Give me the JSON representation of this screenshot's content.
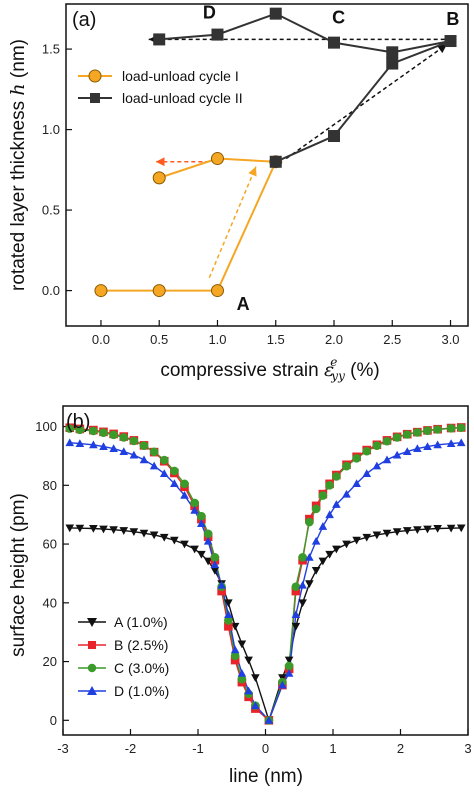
{
  "chart_data": [
    {
      "type": "line",
      "panel_label": "(a)",
      "xlabel": "compressive strain ",
      "xlabel_symbol": "ε",
      "xlabel_sub": "yy",
      "xlabel_sup": "e",
      "xlabel_unit": " (%)",
      "ylabel": "rotated layer thickness ",
      "ylabel_symbol": "h",
      "ylabel_unit": " (nm)",
      "xlim": [
        -0.3,
        3.15
      ],
      "ylim": [
        -0.22,
        1.78
      ],
      "xticks": [
        0.0,
        0.5,
        1.0,
        1.5,
        2.0,
        2.5,
        3.0
      ],
      "xtick_labels": [
        "0.0",
        "0.5",
        "1.0",
        "1.5",
        "2.0",
        "2.5",
        "3.0"
      ],
      "yticks": [
        0.0,
        0.5,
        1.0,
        1.5
      ],
      "ytick_labels": [
        "0.0",
        "0.5",
        "1.0",
        "1.5"
      ],
      "legend_position": "upper-left",
      "series": [
        {
          "name": "load-unload cycle I",
          "color": "#f5a623",
          "marker": "circle",
          "x": [
            0.0,
            0.5,
            1.0,
            1.5,
            1.0,
            0.5
          ],
          "y": [
            0.0,
            0.0,
            0.0,
            0.8,
            0.82,
            0.7
          ]
        },
        {
          "name": "load-unload cycle II",
          "color": "#333333",
          "marker": "square",
          "x": [
            1.5,
            2.0,
            2.5,
            3.0,
            2.5,
            2.0,
            1.5,
            1.0,
            0.5
          ],
          "y": [
            0.8,
            0.96,
            1.41,
            1.55,
            1.48,
            1.54,
            1.72,
            1.59,
            1.56
          ]
        }
      ],
      "point_labels": [
        {
          "text": "A",
          "x": 1.22,
          "y": -0.12
        },
        {
          "text": "B",
          "x": 3.02,
          "y": 1.65
        },
        {
          "text": "C",
          "x": 2.04,
          "y": 1.66
        },
        {
          "text": "D",
          "x": 0.93,
          "y": 1.69
        }
      ],
      "arrows": [
        {
          "color": "#f5a623",
          "from": [
            0.93,
            0.08
          ],
          "to": [
            1.33,
            0.77
          ]
        },
        {
          "color": "#ff5a1f",
          "from": [
            0.99,
            0.8
          ],
          "to": [
            0.47,
            0.8
          ]
        },
        {
          "color": "#111111",
          "from": [
            1.59,
            0.82
          ],
          "to": [
            2.97,
            1.53
          ]
        },
        {
          "color": "#111111",
          "from": [
            2.95,
            1.56
          ],
          "to": [
            0.41,
            1.56
          ]
        }
      ]
    },
    {
      "type": "line",
      "panel_label": "(b)",
      "xlabel": "line  (nm)",
      "ylabel": "surface height  (pm)",
      "xlim": [
        -3,
        3
      ],
      "ylim": [
        -5,
        107
      ],
      "xticks": [
        -3,
        -2,
        -1,
        0,
        1,
        2,
        3
      ],
      "xtick_labels": [
        "-3",
        "-2",
        "-1",
        "0",
        "1",
        "2",
        "3"
      ],
      "yticks": [
        0,
        20,
        40,
        60,
        80,
        100
      ],
      "ytick_labels": [
        "0",
        "20",
        "40",
        "60",
        "80",
        "100"
      ],
      "legend_position": "lower-left",
      "profile_x": [
        -2.9,
        -2.75,
        -2.55,
        -2.4,
        -2.25,
        -2.1,
        -1.95,
        -1.8,
        -1.65,
        -1.5,
        -1.35,
        -1.2,
        -1.05,
        -0.95,
        -0.85,
        -0.75,
        -0.65,
        -0.55,
        -0.45,
        -0.35,
        -0.25,
        -0.15,
        0.05,
        0.25,
        0.35,
        0.45,
        0.55,
        0.65,
        0.75,
        0.85,
        0.95,
        1.05,
        1.2,
        1.35,
        1.5,
        1.65,
        1.8,
        1.95,
        2.1,
        2.25,
        2.4,
        2.55,
        2.75,
        2.9
      ],
      "series": [
        {
          "name": "A (1.0%)",
          "color": "#111111",
          "marker": "triangle-down",
          "y": [
            65.5,
            65.4,
            65.3,
            65.1,
            64.9,
            64.6,
            64.2,
            63.7,
            63.1,
            62.3,
            61.3,
            60.0,
            58.3,
            56.5,
            54.2,
            51.0,
            46.5,
            40.0,
            32.0,
            26.0,
            20.5,
            14.5,
            0.0,
            14.5,
            20.5,
            32.0,
            40.0,
            46.5,
            51.0,
            54.2,
            56.5,
            58.3,
            60.0,
            61.3,
            62.3,
            63.1,
            63.7,
            64.2,
            64.6,
            64.9,
            65.1,
            65.3,
            65.4,
            65.5
          ]
        },
        {
          "name": "B (2.5%)",
          "color": "#e8242a",
          "marker": "square",
          "y": [
            99.6,
            99.2,
            98.8,
            98.2,
            97.5,
            96.6,
            95.3,
            93.6,
            91.3,
            88.2,
            84.2,
            79.5,
            73.0,
            68.5,
            62.5,
            54.5,
            44.0,
            32.0,
            20.5,
            13.0,
            8.0,
            4.0,
            0.0,
            12.0,
            17.5,
            44.0,
            54.5,
            68.5,
            73.0,
            77.0,
            80.5,
            83.5,
            87.0,
            89.7,
            92.0,
            93.8,
            95.3,
            96.5,
            97.4,
            98.1,
            98.7,
            99.1,
            99.5,
            99.7
          ]
        },
        {
          "name": "C (3.0%)",
          "color": "#3a9a2a",
          "marker": "circle",
          "y": [
            99.3,
            98.9,
            98.5,
            97.9,
            97.2,
            96.3,
            95.1,
            93.5,
            91.4,
            88.6,
            84.9,
            80.5,
            74.0,
            69.5,
            63.5,
            55.5,
            45.5,
            34.0,
            22.0,
            14.0,
            9.0,
            5.0,
            0.0,
            13.0,
            18.5,
            45.5,
            55.5,
            67.5,
            72.0,
            76.5,
            80.0,
            83.0,
            86.5,
            89.2,
            91.6,
            93.5,
            95.0,
            96.3,
            97.3,
            98.0,
            98.6,
            99.0,
            99.4,
            99.6
          ]
        },
        {
          "name": "D (1.0%)",
          "color": "#1f3fe0",
          "marker": "triangle-up",
          "y": [
            94.5,
            94.2,
            93.8,
            93.2,
            92.5,
            91.5,
            90.3,
            88.7,
            86.6,
            84.0,
            80.6,
            76.6,
            71.5,
            67.0,
            61.0,
            53.0,
            46.0,
            36.0,
            24.0,
            16.0,
            10.0,
            5.0,
            0.0,
            12.0,
            16.0,
            36.0,
            46.0,
            55.5,
            61.0,
            66.0,
            70.0,
            73.5,
            77.0,
            80.6,
            84.0,
            86.6,
            88.7,
            90.3,
            91.5,
            92.5,
            93.2,
            93.8,
            94.2,
            94.5
          ]
        }
      ]
    }
  ]
}
